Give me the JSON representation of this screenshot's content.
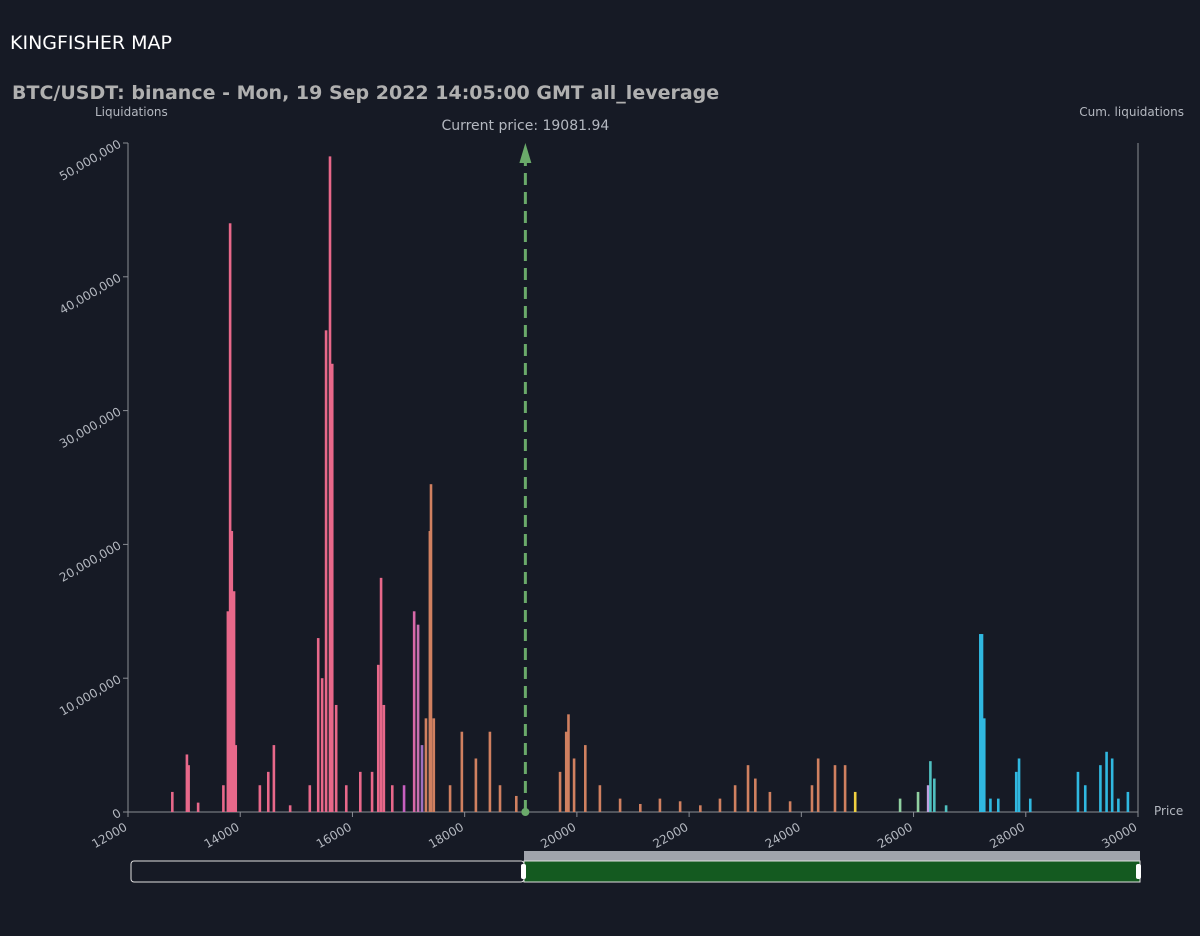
{
  "header": {
    "title": "KINGFISHER MAP"
  },
  "chart_data": {
    "type": "bar",
    "title": "BTC/USDT: binance - Mon, 19 Sep 2022 14:05:00 GMT all_leverage",
    "ylabel": "Liquidations",
    "y2label": "Cum. liquidations",
    "xlabel": "Price",
    "annotation": {
      "text": "Current price: 19081.94",
      "x": 19081.94,
      "color": "#6aaa6a"
    },
    "xlim": [
      12000,
      30000
    ],
    "xticks": [
      12000,
      14000,
      16000,
      18000,
      20000,
      22000,
      24000,
      26000,
      28000,
      30000
    ],
    "ylim": [
      0,
      50000000
    ],
    "yticks": [
      0,
      {
        "value": 10000000,
        "label": "10,000,000"
      },
      {
        "value": 20000000,
        "label": "20,000,000"
      },
      {
        "value": 30000000,
        "label": "30,000,000"
      },
      {
        "value": 40000000,
        "label": "40,000,000"
      },
      {
        "value": 50000000,
        "label": "50,000,000"
      }
    ],
    "x": [
      12790,
      13050,
      13080,
      13250,
      13700,
      13780,
      13820,
      13850,
      13890,
      13920,
      14350,
      14500,
      14600,
      14890,
      15240,
      15390,
      15460,
      15530,
      15600,
      15640,
      15710,
      15890,
      16140,
      16350,
      16460,
      16510,
      16560,
      16710,
      16920,
      17100,
      17170,
      17240,
      17310,
      17380,
      17400,
      17450,
      17740,
      17950,
      18200,
      18450,
      18630,
      18920,
      19700,
      19810,
      19850,
      19950,
      20150,
      20410,
      20770,
      21130,
      21480,
      21840,
      22200,
      22550,
      22820,
      23050,
      23180,
      23440,
      23800,
      24190,
      24300,
      24600,
      24780,
      24960,
      25760,
      26080,
      26260,
      26300,
      26370,
      26580,
      27190,
      27220,
      27260,
      27370,
      27510,
      27830,
      27880,
      28080,
      28930,
      29060,
      29330,
      29440,
      29540,
      29650,
      29820
    ],
    "values": [
      1500000,
      4300000,
      3500000,
      700000,
      2000000,
      15000000,
      44000000,
      21000000,
      16500000,
      5000000,
      2000000,
      3000000,
      5000000,
      500000,
      2000000,
      13000000,
      10000000,
      36000000,
      49000000,
      33500000,
      8000000,
      2000000,
      3000000,
      3000000,
      11000000,
      17500000,
      8000000,
      2000000,
      2000000,
      15000000,
      14000000,
      5000000,
      7000000,
      21000000,
      24500000,
      7000000,
      2000000,
      6000000,
      4000000,
      6000000,
      2000000,
      1200000,
      3000000,
      6000000,
      7300000,
      4000000,
      5000000,
      2000000,
      1000000,
      600000,
      1000000,
      800000,
      500000,
      1000000,
      2000000,
      3500000,
      2500000,
      1500000,
      800000,
      2000000,
      4000000,
      3500000,
      3500000,
      1500000,
      1000000,
      1500000,
      2000000,
      3800000,
      2500000,
      500000,
      13300000,
      13300000,
      7000000,
      1000000,
      1000000,
      3000000,
      4000000,
      1000000,
      3000000,
      2000000,
      3500000,
      4500000,
      4000000,
      1000000,
      1500000
    ],
    "colors": [
      "#e8688a",
      "#e8688a",
      "#e8688a",
      "#e8688a",
      "#e8688a",
      "#e8688a",
      "#e8688a",
      "#e8688a",
      "#e8688a",
      "#e8688a",
      "#e8688a",
      "#e8688a",
      "#e8688a",
      "#e8688a",
      "#e8688a",
      "#e8688a",
      "#e8688a",
      "#e8688a",
      "#e8688a",
      "#e8688a",
      "#e8688a",
      "#e8688a",
      "#e8688a",
      "#e8688a",
      "#e8688a",
      "#e8688a",
      "#e8688a",
      "#e8688a",
      "#c860c0",
      "#d868a8",
      "#c870b0",
      "#a070c0",
      "#d08060",
      "#d08060",
      "#d08060",
      "#d08060",
      "#d08060",
      "#d08060",
      "#d08060",
      "#d08060",
      "#d08060",
      "#d08060",
      "#d08060",
      "#d08060",
      "#d08060",
      "#d08060",
      "#d08060",
      "#d08060",
      "#d08060",
      "#d08060",
      "#d08060",
      "#d08060",
      "#d08060",
      "#d08060",
      "#d08060",
      "#d08060",
      "#d08060",
      "#d08060",
      "#d08060",
      "#d08060",
      "#d08060",
      "#d08060",
      "#d08060",
      "#f0d040",
      "#90d0a0",
      "#90d0a0",
      "#c0a0e0",
      "#50c0c0",
      "#50c0c0",
      "#50c0c0",
      "#30b8e0",
      "#30b8e0",
      "#30b8e0",
      "#30b8e0",
      "#30b8e0",
      "#30b8e0",
      "#30b8e0",
      "#30b8e0",
      "#30b8e0",
      "#30b8e0",
      "#30b8e0",
      "#30b8e0",
      "#30b8e0",
      "#30b8e0",
      "#30b8e0"
    ]
  }
}
